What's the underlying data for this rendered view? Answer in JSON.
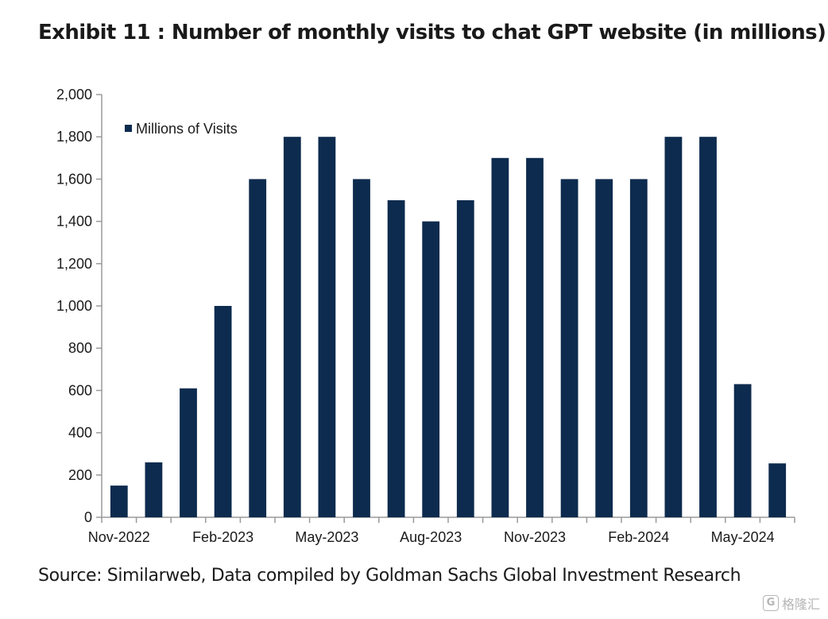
{
  "title": "Exhibit 11 : Number of monthly visits to chat GPT website (in millions)",
  "source": "Source: Similarweb, Data compiled by Goldman Sachs Global Investment Research",
  "watermark": {
    "logo_letter": "G",
    "text": "格隆汇"
  },
  "colors": {
    "bar": "#0d2b4e",
    "axis": "#9a9a9a",
    "text": "#1a1a1a"
  },
  "chart_data": {
    "type": "bar",
    "title": "Exhibit 11 : Number of monthly visits to chat GPT website (in millions)",
    "xlabel": "",
    "ylabel": "",
    "ylim": [
      0,
      2000
    ],
    "yticks": [
      0,
      200,
      400,
      600,
      800,
      1000,
      1200,
      1400,
      1600,
      1800,
      2000
    ],
    "ytick_labels": [
      "0",
      "200",
      "400",
      "600",
      "800",
      "1,000",
      "1,200",
      "1,400",
      "1,600",
      "1,800",
      "2,000"
    ],
    "categories": [
      "Nov-2022",
      "Dec-2022",
      "Jan-2023",
      "Feb-2023",
      "Mar-2023",
      "Apr-2023",
      "May-2023",
      "Jun-2023",
      "Jul-2023",
      "Aug-2023",
      "Sep-2023",
      "Oct-2023",
      "Nov-2023",
      "Dec-2023",
      "Jan-2024",
      "Feb-2024",
      "Mar-2024",
      "Apr-2024",
      "May-2024",
      "Jun-2024"
    ],
    "xtick_labels": [
      "Nov-2022",
      "Feb-2023",
      "May-2023",
      "Aug-2023",
      "Nov-2023",
      "Feb-2024",
      "May-2024"
    ],
    "xtick_label_positions": [
      0,
      3,
      6,
      9,
      12,
      15,
      18
    ],
    "series": [
      {
        "name": "Millions of Visits",
        "values": [
          150,
          260,
          610,
          1000,
          1600,
          1800,
          1800,
          1600,
          1500,
          1400,
          1500,
          1700,
          1700,
          1600,
          1600,
          1600,
          1800,
          1800,
          630,
          255
        ]
      }
    ],
    "grid": false,
    "legend": "top-left"
  }
}
